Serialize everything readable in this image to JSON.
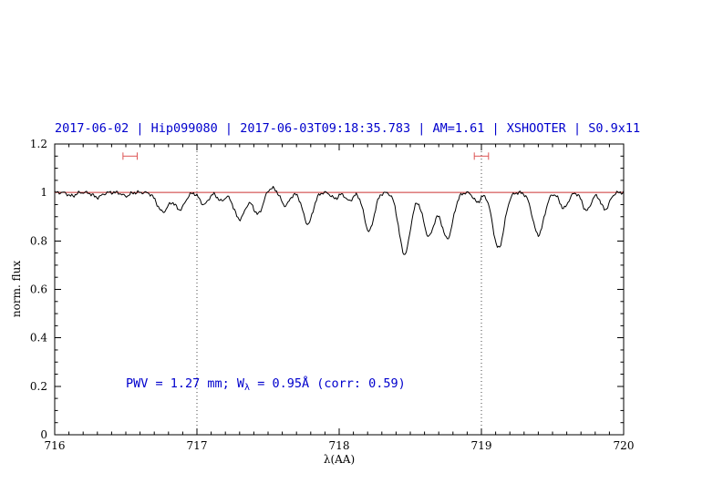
{
  "title": {
    "text": "2017-06-02 | Hip099080 | 2017-06-03T09:18:35.783 | AM=1.61 | XSHOOTER | S0.9x11"
  },
  "annotation": {
    "prefix": "PWV = 1.27 mm; W",
    "sub": "λ",
    "suffix": " = 0.95Å (corr: 0.59)"
  },
  "axes": {
    "xlabel": "λ(AA)",
    "ylabel": "norm. flux"
  },
  "colors": {
    "title": "#0000cd",
    "annotation": "#0000cd",
    "continuum": "#cc3333",
    "marker": "#dd5555",
    "spectrum": "#000000",
    "guide": "#444444",
    "frame": "#000000"
  },
  "chart_data": {
    "type": "line",
    "title": "2017-06-02 | Hip099080 | 2017-06-03T09:18:35.783 | AM=1.61 | XSHOOTER | S0.9x11",
    "xlabel": "λ(AA)",
    "ylabel": "norm. flux",
    "xlim": [
      716,
      720
    ],
    "ylim": [
      0,
      1.2
    ],
    "x_major_ticks": [
      716,
      717,
      718,
      719,
      720
    ],
    "x_tick_labels": [
      "716",
      "717",
      "718",
      "719",
      "720"
    ],
    "x_minor_step": 0.1,
    "y_major_ticks": [
      0,
      0.2,
      0.4,
      0.6,
      0.8,
      1,
      1.2
    ],
    "y_tick_labels": [
      "0",
      "0.2",
      "0.4",
      "0.6",
      "0.8",
      "1",
      "1.2"
    ],
    "y_minor_step": 0.05,
    "continuum_level": 1.0,
    "dotted_guides_x": [
      717,
      719
    ],
    "range_markers": [
      {
        "x1": 716.48,
        "x2": 716.58,
        "y": 1.15
      },
      {
        "x1": 718.95,
        "x2": 719.05,
        "y": 1.15
      }
    ],
    "spectrum": {
      "continuum": 1.0,
      "sample_step": 0.008,
      "absorption_lines": [
        [
          716.12,
          0.015,
          0.025
        ],
        [
          716.3,
          0.02,
          0.03
        ],
        [
          716.5,
          0.015,
          0.025
        ],
        [
          716.76,
          0.08,
          0.04
        ],
        [
          716.88,
          0.07,
          0.035
        ],
        [
          717.05,
          0.05,
          0.03
        ],
        [
          717.17,
          0.035,
          0.025
        ],
        [
          717.3,
          0.11,
          0.04
        ],
        [
          717.43,
          0.09,
          0.035
        ],
        [
          717.52,
          -0.02,
          0.04
        ],
        [
          717.62,
          0.055,
          0.03
        ],
        [
          717.78,
          0.13,
          0.035
        ],
        [
          717.97,
          0.025,
          0.025
        ],
        [
          718.07,
          0.035,
          0.025
        ],
        [
          718.21,
          0.16,
          0.035
        ],
        [
          718.46,
          0.255,
          0.04
        ],
        [
          718.63,
          0.18,
          0.04
        ],
        [
          718.76,
          0.19,
          0.04
        ],
        [
          718.97,
          0.04,
          0.025
        ],
        [
          719.12,
          0.23,
          0.04
        ],
        [
          719.4,
          0.175,
          0.04
        ],
        [
          719.58,
          0.065,
          0.03
        ],
        [
          719.74,
          0.075,
          0.03
        ],
        [
          719.87,
          0.07,
          0.03
        ]
      ],
      "noise_components": [
        [
          0.004,
          19.0,
          0.3
        ],
        [
          0.0035,
          41.0,
          1.7
        ],
        [
          0.002,
          77.0,
          0.9
        ]
      ]
    }
  }
}
